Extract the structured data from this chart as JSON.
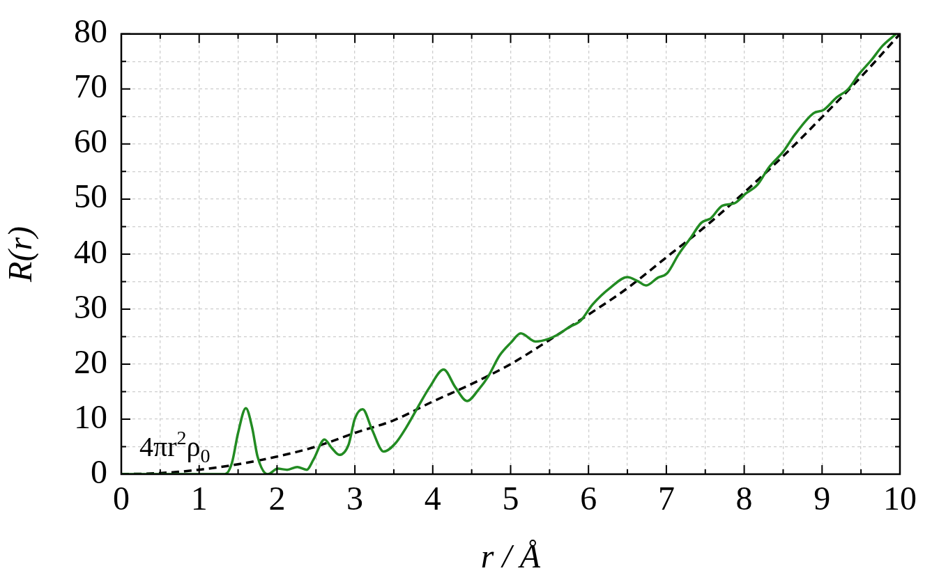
{
  "chart_data": {
    "type": "line",
    "xlabel": "r / Å",
    "ylabel": "R(r)",
    "series": [
      {
        "color": "#228b22",
        "line_style": "solid",
        "x": [
          0,
          0.5,
          1.0,
          1.25,
          1.33,
          1.42,
          1.5,
          1.6,
          1.68,
          1.75,
          1.88,
          2.01,
          2.13,
          2.26,
          2.38,
          2.47,
          2.61,
          2.7,
          2.8,
          2.92,
          3.0,
          3.1,
          3.22,
          3.37,
          3.52,
          3.66,
          3.81,
          3.96,
          4.14,
          4.29,
          4.44,
          4.59,
          4.71,
          4.86,
          5.01,
          5.13,
          5.32,
          5.49,
          5.6,
          5.75,
          5.9,
          6.05,
          6.29,
          6.5,
          6.63,
          6.74,
          6.89,
          7.01,
          7.16,
          7.31,
          7.45,
          7.57,
          7.72,
          7.87,
          8.02,
          8.17,
          8.32,
          8.5,
          8.65,
          8.89,
          9.02,
          9.19,
          9.33,
          9.48,
          9.63,
          9.78,
          9.95
        ],
        "values": [
          0,
          0,
          0,
          0,
          0,
          2,
          7.5,
          12,
          8.5,
          3.2,
          0,
          1.0,
          0.8,
          1.3,
          0.8,
          2.7,
          6.3,
          4.8,
          3.5,
          5.4,
          10.1,
          11.8,
          8.1,
          4.1,
          5.6,
          8.5,
          12.2,
          15.8,
          19.0,
          15.8,
          13.3,
          15.4,
          17.7,
          21.6,
          24.0,
          25.6,
          24.1,
          24.6,
          25.3,
          26.7,
          27.9,
          30.8,
          34.0,
          35.8,
          35.1,
          34.3,
          35.7,
          36.5,
          40.0,
          42.9,
          45.7,
          46.5,
          48.8,
          49.2,
          51.0,
          52.6,
          55.8,
          58.6,
          61.7,
          65.6,
          66.2,
          68.5,
          69.9,
          72.8,
          75.2,
          77.9,
          80
        ]
      },
      {
        "name": "4πr$^{2}$ρ$_{0}$",
        "color": "#000000",
        "line_style": "dashed",
        "x": [
          0,
          0.5,
          1,
          1.5,
          2,
          2.5,
          3,
          3.5,
          4,
          4.5,
          5,
          5.5,
          6,
          6.5,
          7,
          7.5,
          8,
          8.5,
          9,
          9.5,
          10
        ],
        "values": [
          0,
          0.2,
          0.8,
          1.8,
          3.2,
          5.0,
          7.5,
          9.8,
          13.2,
          16.4,
          20,
          24.4,
          29,
          33.8,
          39.4,
          45,
          51.2,
          57.8,
          64.9,
          72.2,
          80
        ]
      }
    ],
    "xlim": [
      0,
      10
    ],
    "ylim": [
      0,
      80
    ],
    "xticks": [
      0,
      {
        "value": 0.5,
        "label": null
      },
      1,
      {
        "value": 1.5,
        "label": null
      },
      2,
      {
        "value": 2.5,
        "label": null
      },
      3,
      {
        "value": 3.5,
        "label": null
      },
      4,
      {
        "value": 4.5,
        "label": null
      },
      5,
      {
        "value": 5.5,
        "label": null
      },
      6,
      {
        "value": 6.5,
        "label": null
      },
      7,
      {
        "value": 7.5,
        "label": null
      },
      8,
      {
        "value": 8.5,
        "label": null
      },
      9,
      {
        "value": 9.5,
        "label": null
      },
      10
    ],
    "yticks": [
      0,
      {
        "value": 5,
        "label": null
      },
      10,
      {
        "value": 15,
        "label": null
      },
      20,
      {
        "value": 25,
        "label": null
      },
      30,
      {
        "value": 35,
        "label": null
      },
      40,
      {
        "value": 45,
        "label": null
      },
      50,
      {
        "value": 55,
        "label": null
      },
      60,
      {
        "value": 65,
        "label": null
      },
      70,
      {
        "value": 75,
        "label": null
      },
      80
    ],
    "grid": true,
    "legend": false,
    "marker": "none"
  }
}
